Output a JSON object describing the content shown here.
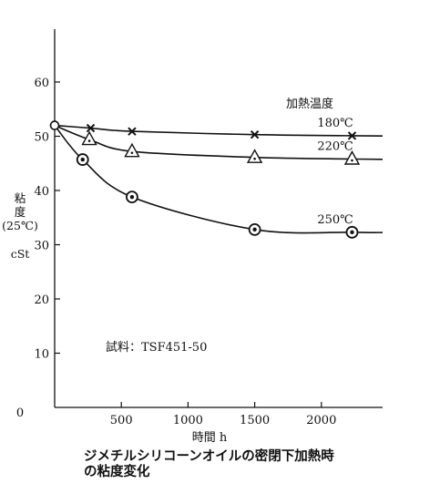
{
  "chart_data": {
    "type": "line",
    "title": "",
    "xlabel": "時間 h",
    "ylabel_lines": [
      "粘",
      "度",
      "(25℃)",
      "cSt"
    ],
    "xlim": [
      0,
      2400
    ],
    "ylim": [
      0,
      70
    ],
    "x_ticks": [
      500,
      1000,
      1500,
      2000
    ],
    "y_ticks": [
      10,
      20,
      30,
      40,
      50,
      60
    ],
    "origin_label": "0",
    "grid": false,
    "legend_title": "加熱温度",
    "series": [
      {
        "name": "180℃",
        "marker": "cross",
        "x": [
          0,
          270,
          580,
          1500,
          2230
        ],
        "y": [
          52,
          51.5,
          50.9,
          50.3,
          50.1
        ]
      },
      {
        "name": "220℃",
        "marker": "triangle",
        "x": [
          0,
          260,
          580,
          1500,
          2230
        ],
        "y": [
          52,
          49.4,
          47.2,
          46.1,
          45.8
        ]
      },
      {
        "name": "250℃",
        "marker": "double-circle",
        "x": [
          0,
          210,
          580,
          1500,
          2230
        ],
        "y": [
          52,
          45.7,
          38.8,
          32.8,
          32.3
        ]
      }
    ],
    "annotation": "試料：TSF451-50",
    "caption": [
      "ジメチルシリコーンオイルの密閉下加熱時",
      "の粘度変化"
    ]
  }
}
